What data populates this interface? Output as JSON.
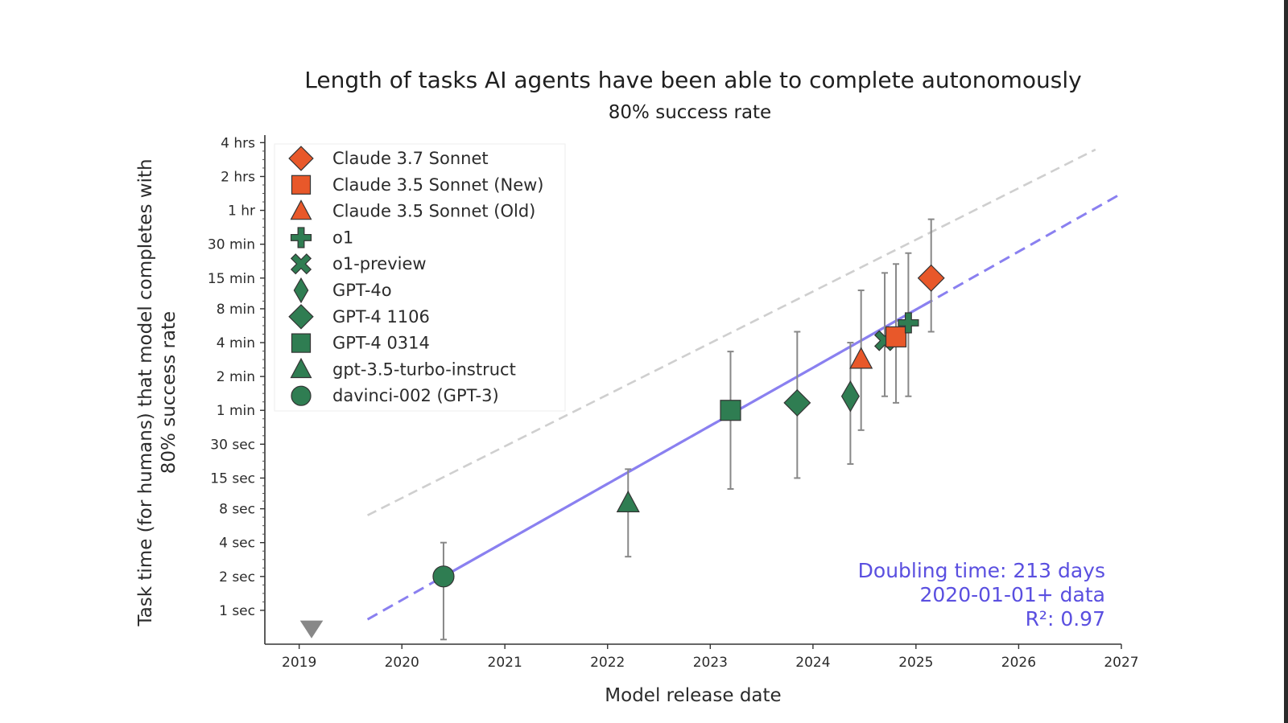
{
  "chart_data": {
    "type": "scatter",
    "title": "Length of tasks AI agents have been able to complete autonomously",
    "subtitle": "80% success rate",
    "xlabel": "Model release date",
    "ylabel": "Task time (for humans) that model completes with 80% success rate",
    "ylabel_lines": [
      "Task time (for humans) that model completes with",
      "80% success rate"
    ],
    "y_scale": "log",
    "xlim": [
      "2018-09-01",
      "2027-01-01"
    ],
    "ylim_seconds": [
      0.5,
      350
    ],
    "x_ticks": [
      {
        "label": "2019",
        "date": "2019-01-01"
      },
      {
        "label": "2020",
        "date": "2020-01-01"
      },
      {
        "label": "2021",
        "date": "2021-01-01"
      },
      {
        "label": "2022",
        "date": "2022-01-01"
      },
      {
        "label": "2023",
        "date": "2023-01-01"
      },
      {
        "label": "2024",
        "date": "2024-01-01"
      },
      {
        "label": "2025",
        "date": "2025-01-01"
      },
      {
        "label": "2026",
        "date": "2026-01-01"
      },
      {
        "label": "2027",
        "date": "2027-01-01"
      }
    ],
    "y_ticks": [
      {
        "label": "1 sec",
        "seconds": 1
      },
      {
        "label": "2 sec",
        "seconds": 2
      },
      {
        "label": "4 sec",
        "seconds": 4
      },
      {
        "label": "8 sec",
        "seconds": 8
      },
      {
        "label": "15 sec",
        "seconds": 15
      },
      {
        "label": "30 sec",
        "seconds": 30
      },
      {
        "label": "1 min",
        "seconds": 60
      },
      {
        "label": "2 min",
        "seconds": 120
      },
      {
        "label": "4 min",
        "seconds": 240
      },
      {
        "label": "8 min",
        "seconds": 480
      },
      {
        "label": "15 min",
        "seconds": 900
      },
      {
        "label": "30 min",
        "seconds": 1800
      },
      {
        "label": "1 hr",
        "seconds": 3600
      },
      {
        "label": "2 hrs",
        "seconds": 7200
      },
      {
        "label": "4 hrs",
        "seconds": 14400
      }
    ],
    "legend_position": "top-left",
    "series": [
      {
        "name": "Claude 3.7 Sonnet",
        "marker": "diamond",
        "color": "#e8582a",
        "date": "2025-02-24",
        "seconds": 900,
        "ci_seconds": [
          300,
          3000
        ]
      },
      {
        "name": "Claude 3.5 Sonnet (New)",
        "marker": "square",
        "color": "#e8582a",
        "date": "2024-10-22",
        "seconds": 270,
        "ci_seconds": [
          70,
          1200
        ]
      },
      {
        "name": "Claude 3.5 Sonnet (Old)",
        "marker": "triangle",
        "color": "#e8582a",
        "date": "2024-06-20",
        "seconds": 170,
        "ci_seconds": [
          40,
          700
        ]
      },
      {
        "name": "o1",
        "marker": "plus",
        "color": "#2f7d52",
        "date": "2024-12-05",
        "seconds": 360,
        "ci_seconds": [
          80,
          1500
        ]
      },
      {
        "name": "o1-preview",
        "marker": "x",
        "color": "#2f7d52",
        "date": "2024-09-12",
        "seconds": 250,
        "ci_seconds": [
          80,
          1000
        ]
      },
      {
        "name": "GPT-4o",
        "marker": "thin_diamond",
        "color": "#2f7d52",
        "date": "2024-05-13",
        "seconds": 80,
        "ci_seconds": [
          20,
          240
        ]
      },
      {
        "name": "GPT-4 1106",
        "marker": "diamond",
        "color": "#2f7d52",
        "date": "2023-11-06",
        "seconds": 70,
        "ci_seconds": [
          15,
          300
        ]
      },
      {
        "name": "GPT-4 0314",
        "marker": "square",
        "color": "#2f7d52",
        "date": "2023-03-14",
        "seconds": 60,
        "ci_seconds": [
          12,
          200
        ]
      },
      {
        "name": "gpt-3.5-turbo-instruct",
        "marker": "triangle",
        "color": "#2f7d52",
        "date": "2022-03-15",
        "seconds": 9,
        "ci_seconds": [
          3,
          18
        ]
      },
      {
        "name": "davinci-002 (GPT-3)",
        "marker": "circle",
        "color": "#2f7d52",
        "date": "2020-05-28",
        "seconds": 2,
        "ci_seconds": [
          0.55,
          4
        ]
      }
    ],
    "below_range_marker": {
      "marker": "triangle_down",
      "color": "#888888",
      "date": "2019-02-14"
    },
    "trend_line": {
      "color": "#8a80f0",
      "solid_from": "2020-05-28",
      "solid_to": "2025-02-24",
      "dashed_from": "2019-09-01",
      "dashed_to": "2027-01-01",
      "doubling_days": 213,
      "anchor_date": "2020-05-28",
      "anchor_seconds": 2
    },
    "reference_line": {
      "color": "#cfcfcf",
      "from": "2019-09-01",
      "to": "2026-10-01",
      "start_seconds": 7,
      "end_seconds": 12500
    },
    "annotation": [
      "Doubling time: 213 days",
      "2020-01-01+ data",
      "R²: 0.97"
    ]
  }
}
